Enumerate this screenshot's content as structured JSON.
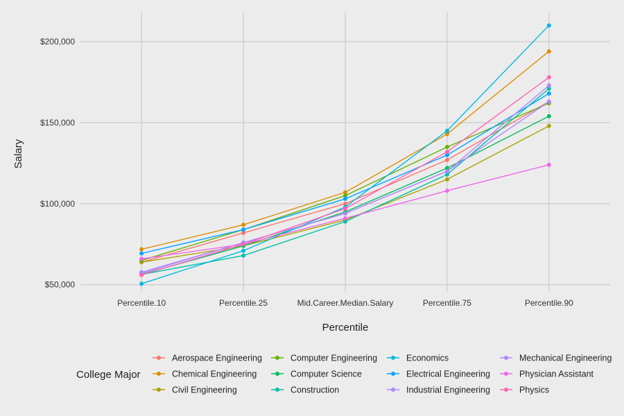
{
  "chart_data": {
    "type": "line",
    "title": "",
    "xlabel": "Percentile",
    "ylabel": "Salary",
    "categories": [
      "Percentile.10",
      "Percentile.25",
      "Mid.Career.Median.Salary",
      "Percentile.75",
      "Percentile.90"
    ],
    "ylim": [
      46000,
      218000
    ],
    "yticks": [
      50000,
      100000,
      150000,
      200000
    ],
    "ytick_labels": [
      "$50,000",
      "$100,000",
      "$150,000",
      "$200,000"
    ],
    "grid": true,
    "legend_title": "College Major",
    "legend_position": "bottom",
    "series": [
      {
        "name": "Aerospace Engineering",
        "color": "#F8766D",
        "values": [
          63900,
          82000,
          100000,
          127000,
          163000
        ]
      },
      {
        "name": "Chemical Engineering",
        "color": "#DB8E00",
        "values": [
          71900,
          87000,
          107000,
          143000,
          194000
        ]
      },
      {
        "name": "Civil Engineering",
        "color": "#AEA200",
        "values": [
          63900,
          74000,
          90000,
          115000,
          148000
        ]
      },
      {
        "name": "Computer Engineering",
        "color": "#64B200",
        "values": [
          65000,
          84000,
          105000,
          135000,
          162000
        ]
      },
      {
        "name": "Computer Science",
        "color": "#00BD5C",
        "values": [
          56400,
          74000,
          95000,
          122000,
          154000
        ]
      },
      {
        "name": "Construction",
        "color": "#00C1A7",
        "values": [
          56300,
          68000,
          89000,
          118000,
          171000
        ]
      },
      {
        "name": "Economics",
        "color": "#00BADE",
        "values": [
          50600,
          71000,
          98000,
          145000,
          210000
        ]
      },
      {
        "name": "Electrical Engineering",
        "color": "#00A6FF",
        "values": [
          69300,
          84000,
          103000,
          130000,
          168000
        ]
      },
      {
        "name": "Industrial Engineering",
        "color": "#B385FF",
        "values": [
          57700,
          76000,
          94000,
          120000,
          173000
        ]
      },
      {
        "name": "Mechanical Engineering",
        "color": "#B385FF",
        "values": [
          57100,
          76000,
          94000,
          120000,
          163000
        ]
      },
      {
        "name": "Physician Assistant",
        "color": "#EF67EB",
        "values": [
          66000,
          75000,
          91000,
          108000,
          124000
        ]
      },
      {
        "name": "Physics",
        "color": "#FF63B6",
        "values": [
          56000,
          75000,
          97000,
          132000,
          178000
        ]
      }
    ]
  }
}
